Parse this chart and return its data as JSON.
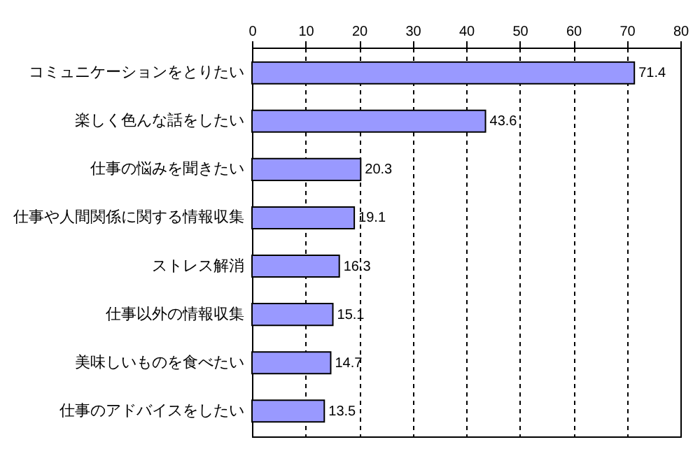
{
  "chart_data": {
    "type": "bar",
    "orientation": "horizontal",
    "categories": [
      "コミュニケーションをとりたい",
      "楽しく色んな話をしたい",
      "仕事の悩みを聞きたい",
      "仕事や人間関係に関する情報収集",
      "ストレス解消",
      "仕事以外の情報収集",
      "美味しいものを食べたい",
      "仕事のアドバイスをしたい"
    ],
    "values": [
      71.4,
      43.6,
      20.3,
      19.1,
      16.3,
      15.1,
      14.7,
      13.5
    ],
    "color": "#9999ff",
    "xlim": [
      0,
      80
    ],
    "xticks": [
      0,
      10,
      20,
      30,
      40,
      50,
      60,
      70,
      80
    ],
    "grid": "x",
    "data_labels": true
  }
}
